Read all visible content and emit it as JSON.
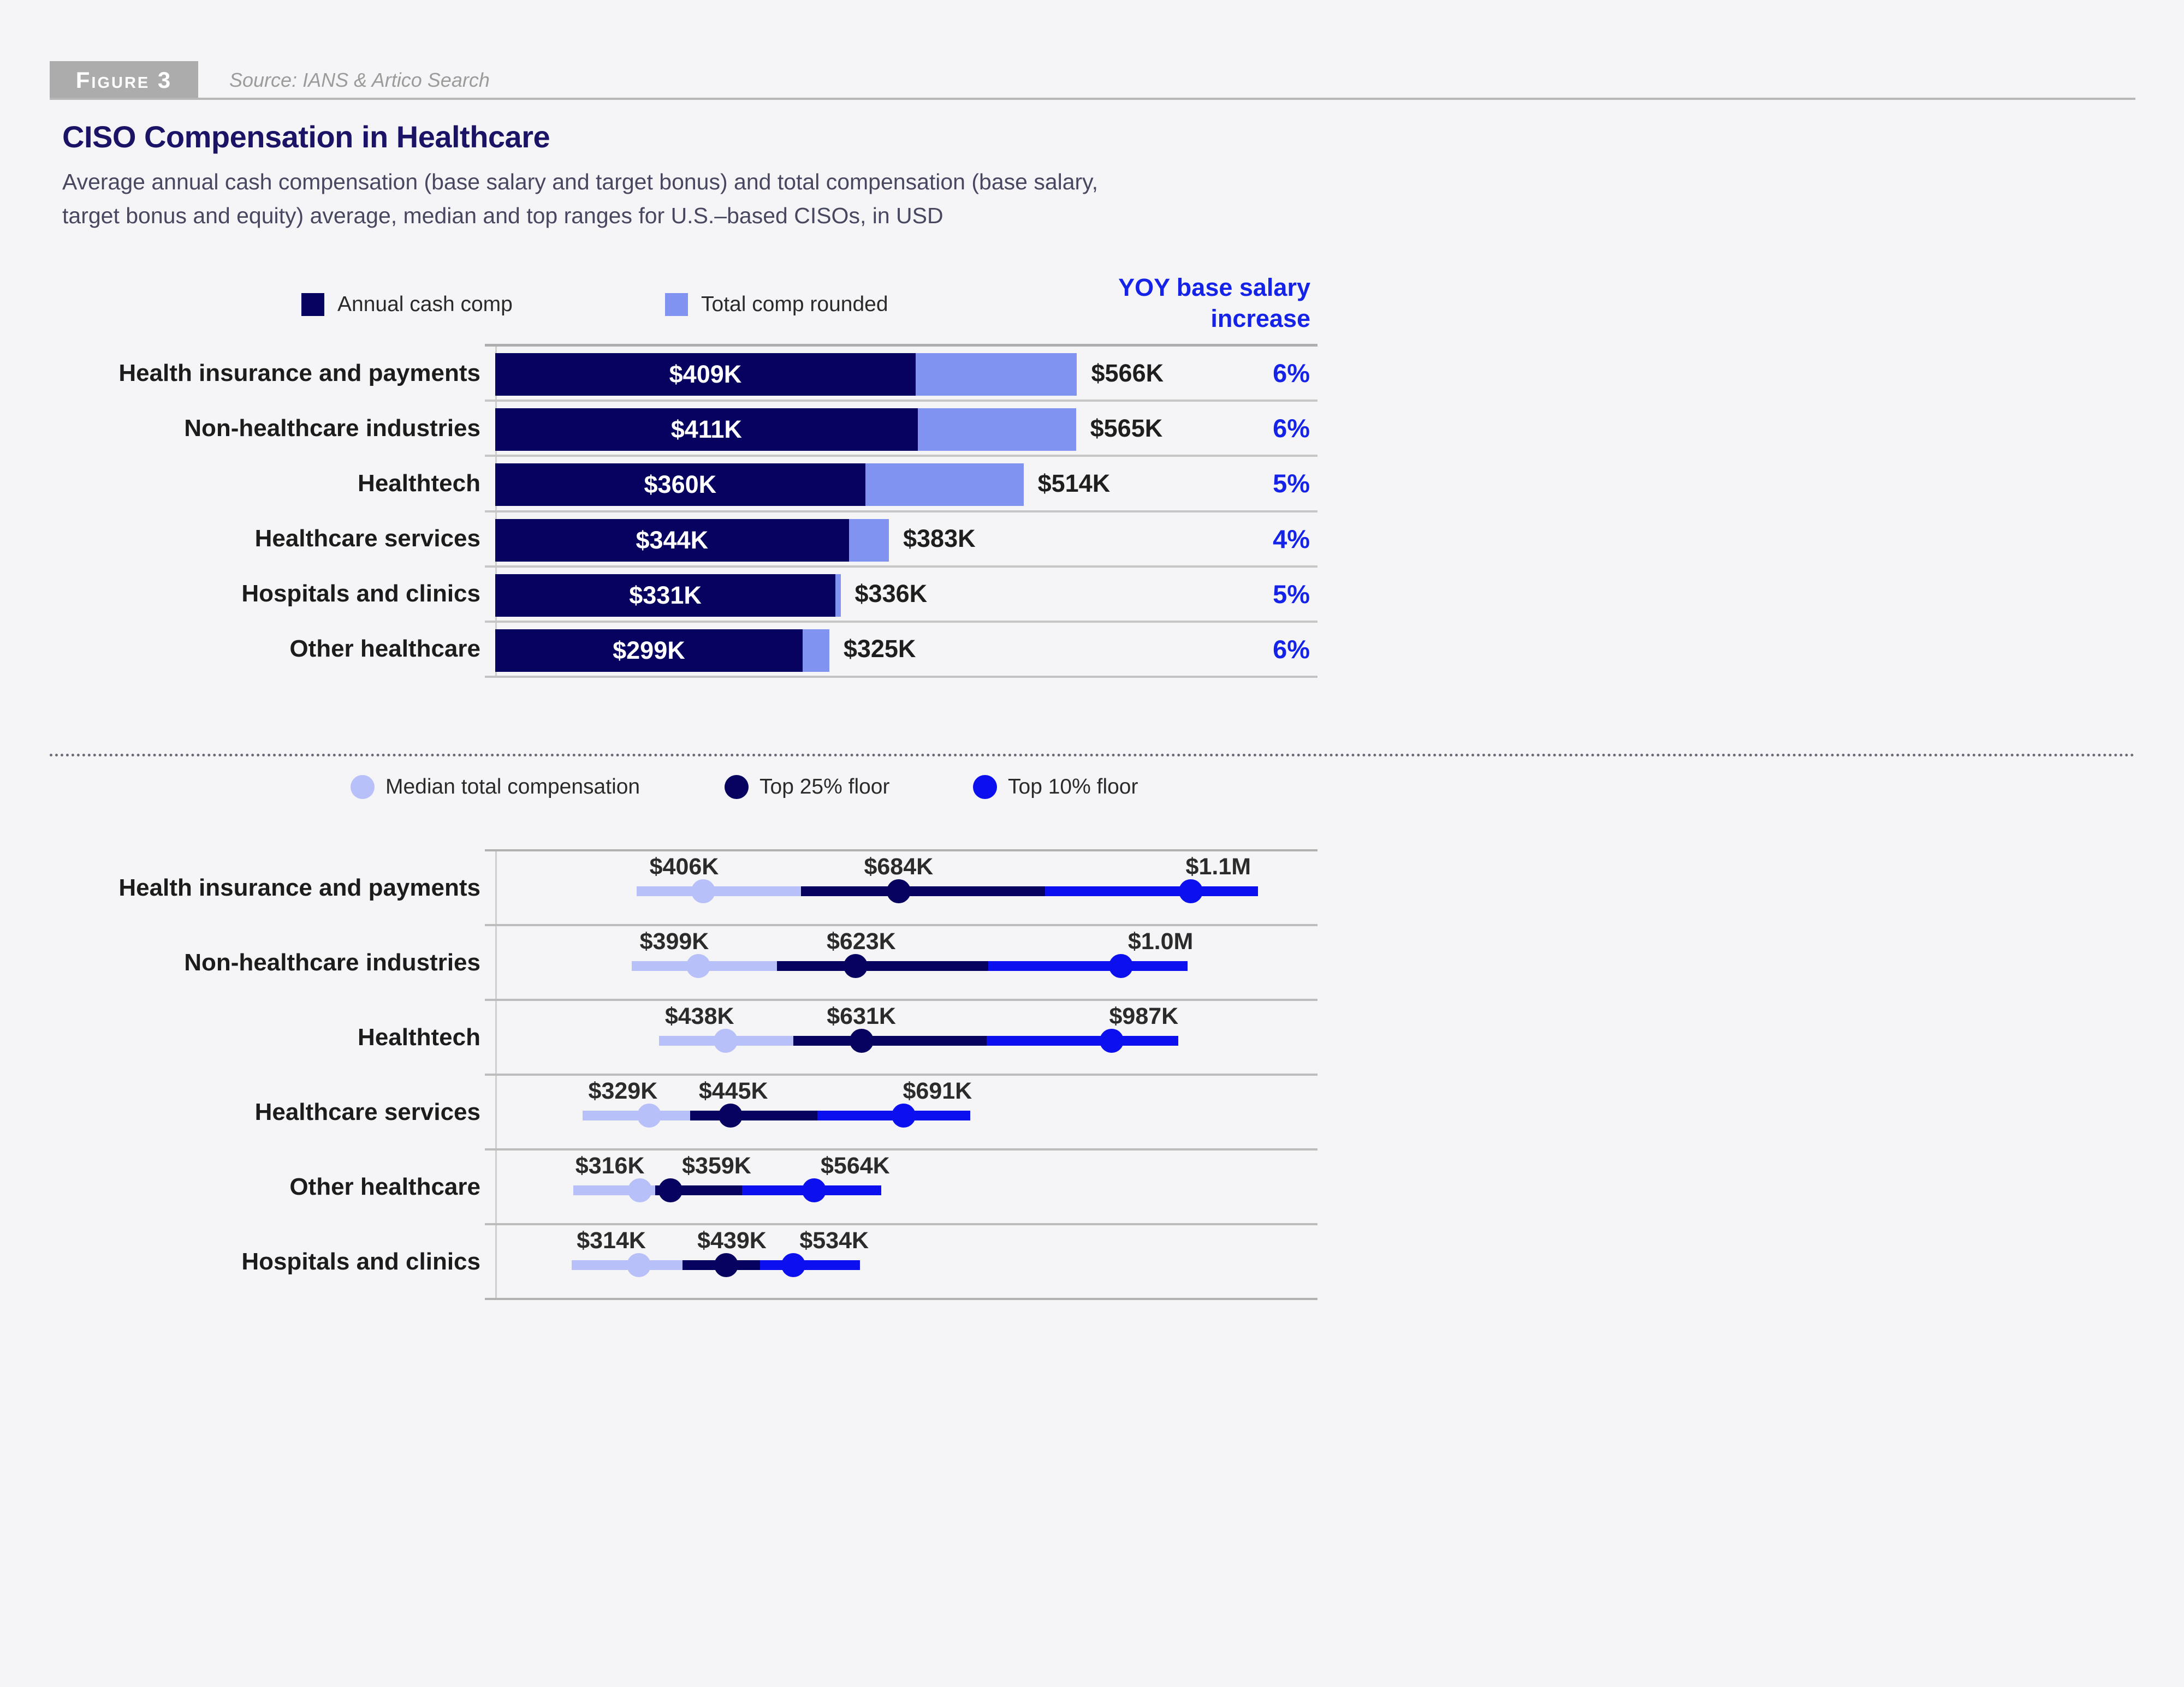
{
  "figure": {
    "tag": "Figure 3",
    "source": "Source: IANS & Artico Search"
  },
  "title": "CISO Compensation in Healthcare",
  "subtitle": {
    "line1": "Average annual cash compensation (base salary and target bonus) and total compensation (base salary,",
    "line2": "target bonus and equity) average, median and top ranges for U.S.–based CISOs, in USD"
  },
  "colors": {
    "background": "#f5f5f7",
    "navy": "#070260",
    "periwinkle": "#8193f0",
    "median_light": "#b7c0f8",
    "top10_blue": "#0d10ee",
    "accent_blue": "#1523e8",
    "title_navy": "#1b1466",
    "grid_gray": "#bcbcbc"
  },
  "chart_data": [
    {
      "type": "bar",
      "title": "CISO average compensation by sector",
      "legend": [
        "Annual cash comp",
        "Total comp rounded"
      ],
      "yoy_header": {
        "line1": "YOY base salary",
        "line2": "increase"
      },
      "categories": [
        "Health insurance and payments",
        "Non-healthcare industries",
        "Healthtech",
        "Healthcare services",
        "Hospitals and clinics",
        "Other healthcare"
      ],
      "series": [
        {
          "name": "Annual cash comp",
          "values": [
            409,
            411,
            360,
            344,
            331,
            299
          ],
          "labels": [
            "$409K",
            "$411K",
            "$360K",
            "$344K",
            "$331K",
            "$299K"
          ]
        },
        {
          "name": "Total comp rounded",
          "values": [
            566,
            565,
            514,
            383,
            336,
            325
          ],
          "labels": [
            "$566K",
            "$565K",
            "$514K",
            "$383K",
            "$336K",
            "$325K"
          ]
        }
      ],
      "yoy_values": [
        "6%",
        "6%",
        "5%",
        "4%",
        "5%",
        "6%"
      ],
      "xlim": [
        0,
        800
      ],
      "grid": false,
      "units": "USD thousands"
    },
    {
      "type": "scatter",
      "title": "Median and top compensation ranges by sector",
      "legend": [
        "Median total compensation",
        "Top 25% floor",
        "Top 10% floor"
      ],
      "categories": [
        "Health insurance and payments",
        "Non-healthcare industries",
        "Healthtech",
        "Healthcare services",
        "Other healthcare",
        "Hospitals and clinics"
      ],
      "series": [
        {
          "name": "Median total compensation",
          "values": [
            406,
            399,
            438,
            329,
            316,
            314
          ],
          "labels": [
            "$406K",
            "$399K",
            "$438K",
            "$329K",
            "$316K",
            "$314K"
          ]
        },
        {
          "name": "Top 25% floor",
          "values": [
            684,
            623,
            631,
            445,
            359,
            439
          ],
          "labels": [
            "$684K",
            "$623K",
            "$631K",
            "$445K",
            "$359K",
            "$439K"
          ]
        },
        {
          "name": "Top 10% floor",
          "values": [
            1100,
            1000,
            987,
            691,
            564,
            534
          ],
          "labels": [
            "$1.1M",
            "$1.0M",
            "$987K",
            "$691K",
            "$564K",
            "$534K"
          ]
        }
      ],
      "xlim": [
        110,
        1280
      ],
      "line_extension_k": 95,
      "label_dx": [
        [
          -35,
          0,
          50
        ],
        [
          -44,
          10,
          73
        ],
        [
          -48,
          0,
          59
        ],
        [
          -48,
          5,
          62
        ],
        [
          -55,
          85,
          75
        ],
        [
          -50,
          10,
          75
        ]
      ],
      "grid": false,
      "units": "USD thousands"
    }
  ]
}
